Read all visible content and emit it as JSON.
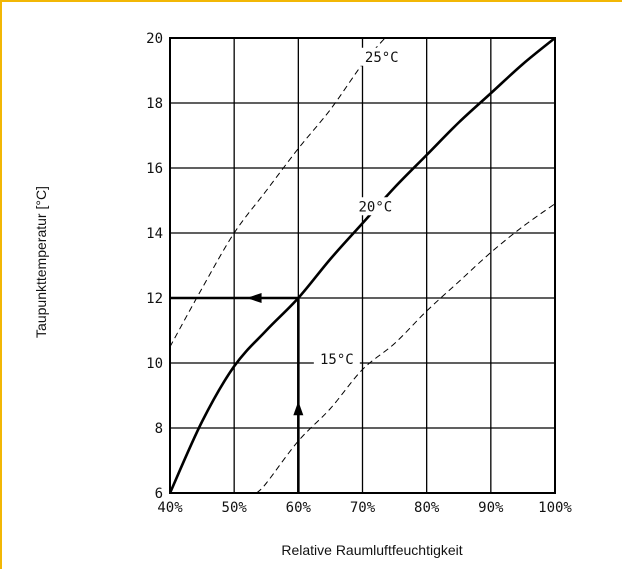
{
  "chart_data": {
    "type": "line",
    "title": "",
    "xlabel": "Relative Raumluftfeuchtigkeit",
    "ylabel": "Taupunkttemperatur [°C]",
    "xlim": [
      40,
      100
    ],
    "ylim": [
      6,
      20
    ],
    "x_ticks": [
      "40%",
      "50%",
      "60%",
      "70%",
      "80%",
      "90%",
      "100%"
    ],
    "y_ticks": [
      "6",
      "8",
      "10",
      "12",
      "14",
      "16",
      "18",
      "20"
    ],
    "grid": true,
    "series": [
      {
        "name": "20°C",
        "style": "solid",
        "x": [
          40,
          45,
          50,
          55,
          60,
          65,
          70,
          75,
          80,
          85,
          90,
          95,
          100
        ],
        "y": [
          6.0,
          8.2,
          9.9,
          11.0,
          12.0,
          13.2,
          14.3,
          15.4,
          16.4,
          17.4,
          18.3,
          19.2,
          20.0
        ]
      },
      {
        "name": "25°C",
        "style": "dashed",
        "x": [
          40,
          45,
          50,
          55,
          60,
          65,
          70,
          73.5
        ],
        "y": [
          10.5,
          12.3,
          14.0,
          15.3,
          16.6,
          17.8,
          19.2,
          20.0
        ]
      },
      {
        "name": "15°C",
        "style": "dashed",
        "x": [
          53.5,
          55,
          60,
          65,
          70,
          75,
          80,
          85,
          90,
          95,
          100
        ],
        "y": [
          6.0,
          6.3,
          7.6,
          8.6,
          9.8,
          10.6,
          11.6,
          12.5,
          13.4,
          14.2,
          14.9
        ]
      }
    ],
    "curve_labels": [
      "25°C",
      "20°C",
      "15°C"
    ],
    "annotation": {
      "description": "Ablesebeispiel",
      "x": 60,
      "y": 12
    }
  }
}
